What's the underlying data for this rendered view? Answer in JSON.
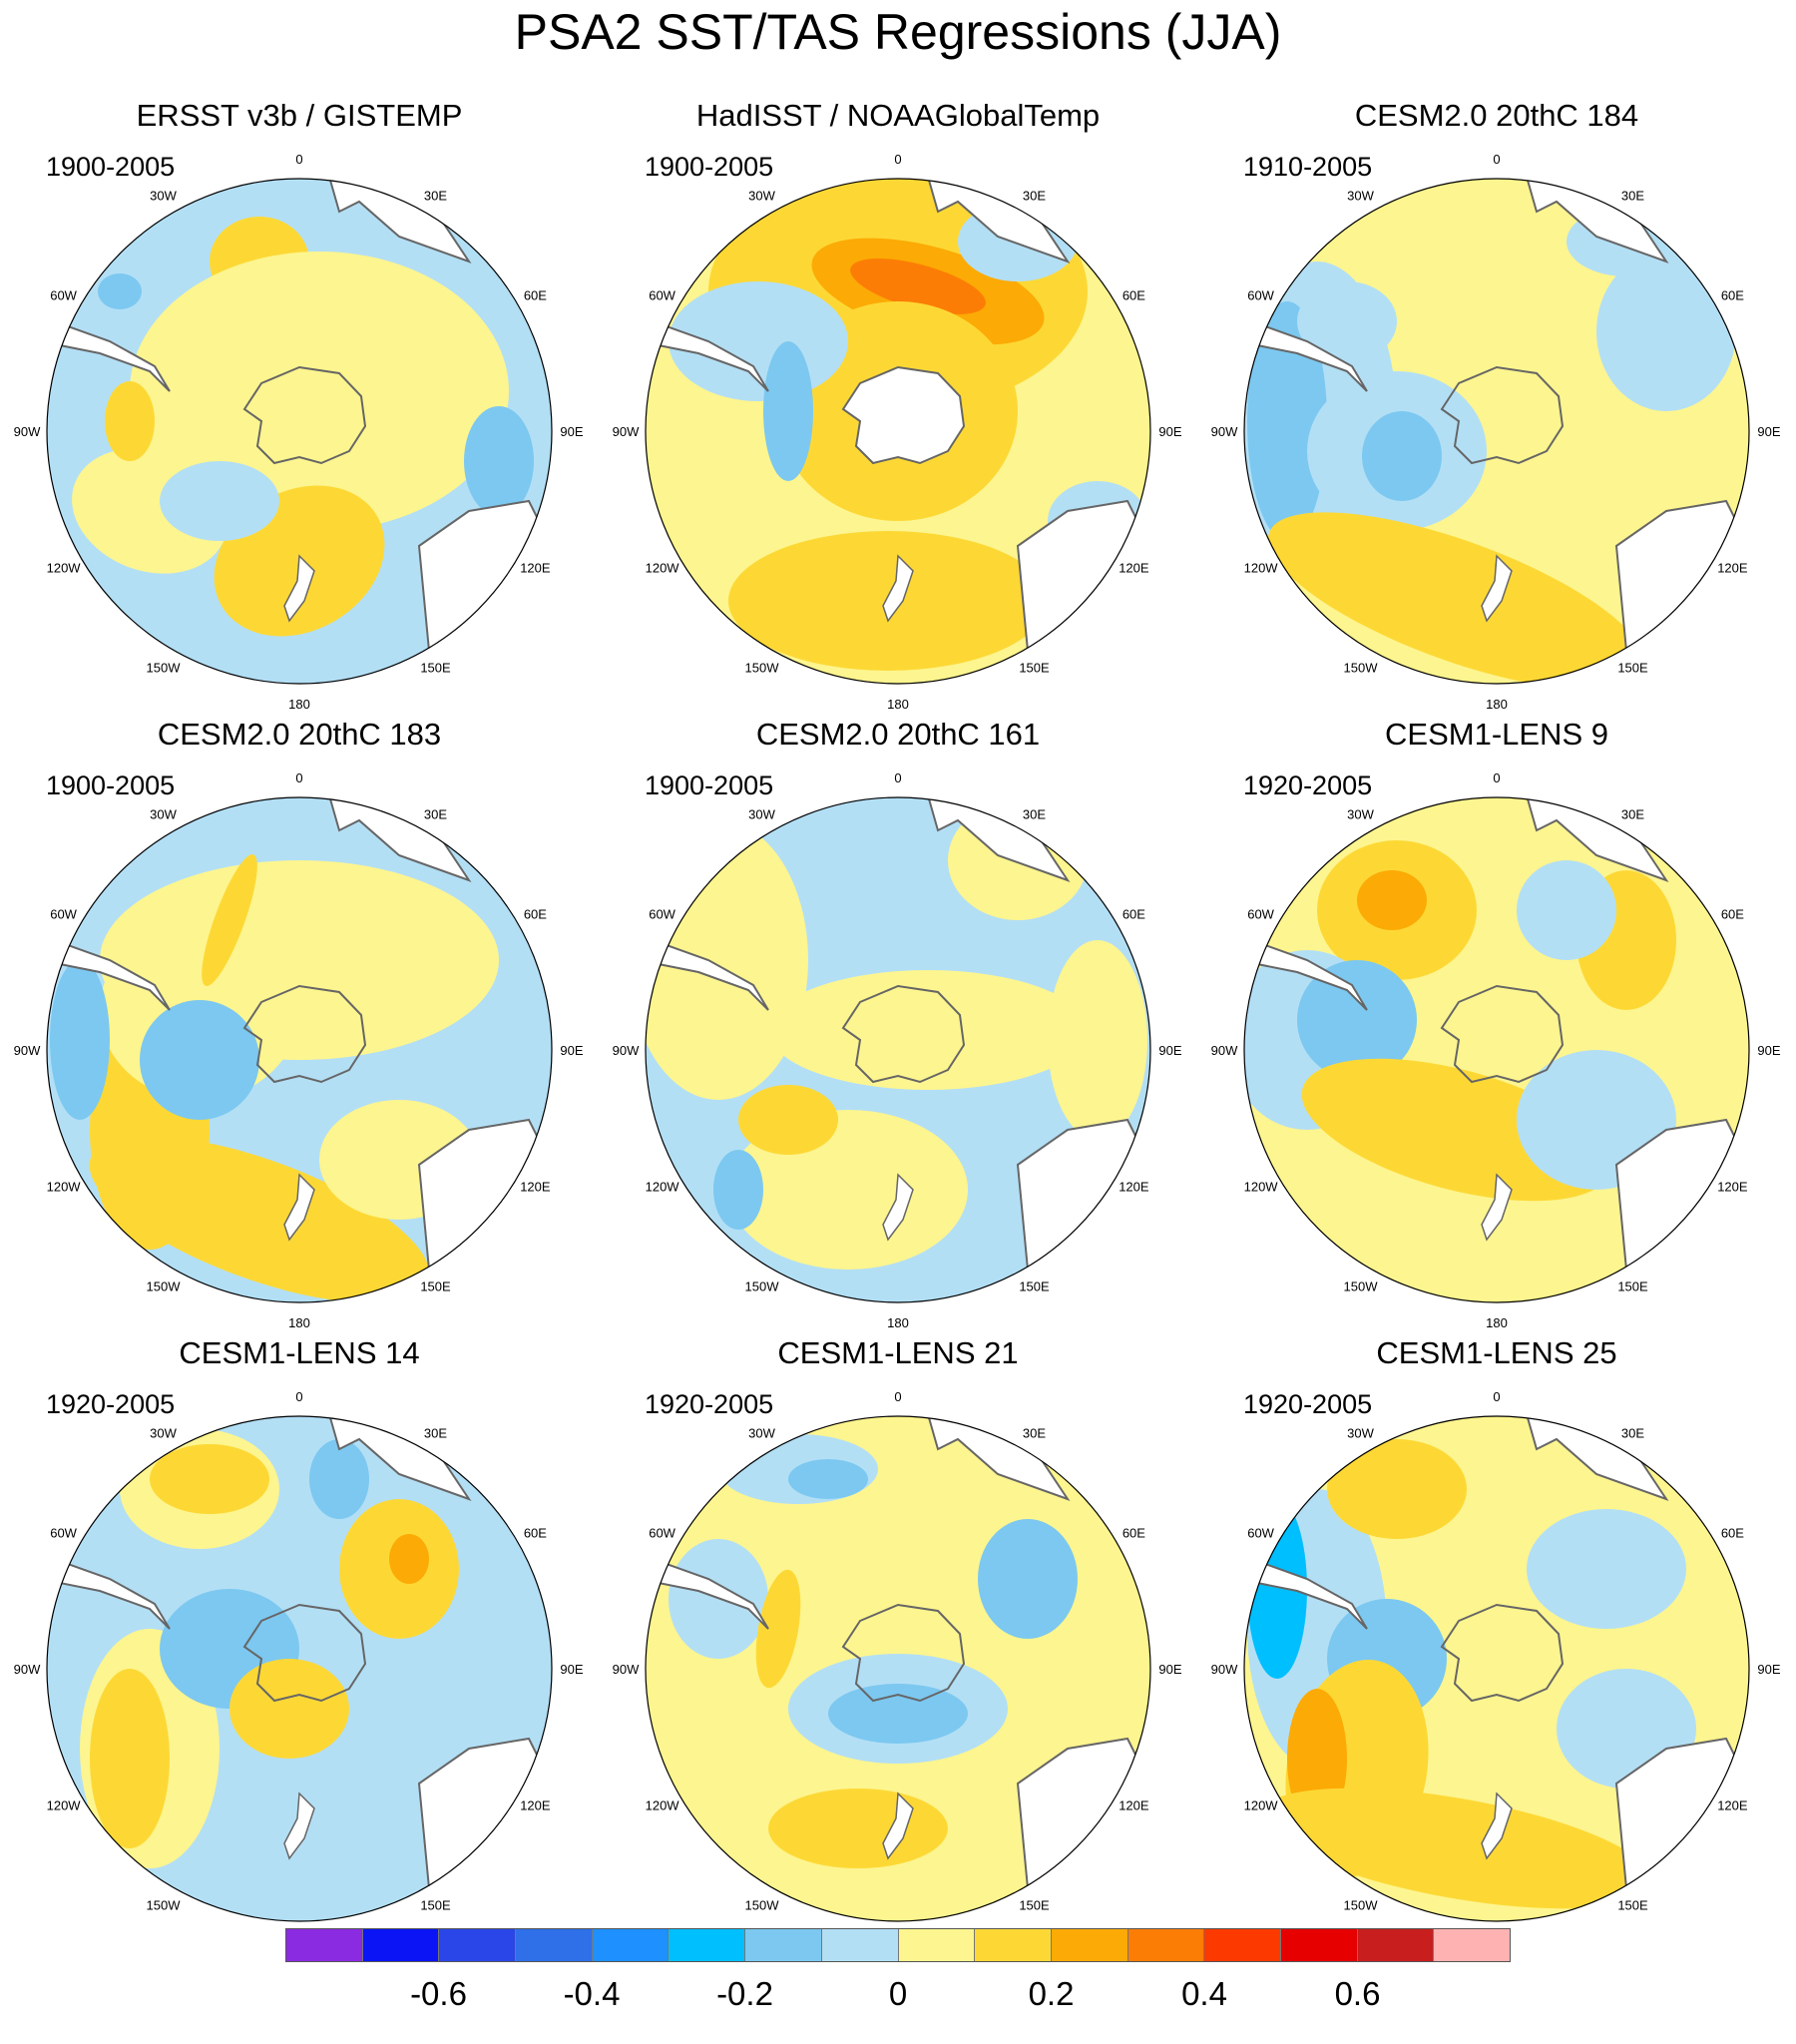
{
  "title": "PSA2 SST/TAS Regressions (JJA)",
  "longitude_labels": [
    "0",
    "30E",
    "60E",
    "90E",
    "120E",
    "150E",
    "180",
    "150W",
    "120W",
    "90W",
    "60W",
    "30W"
  ],
  "panels": [
    {
      "title": "ERSST v3b / GISTEMP",
      "period": "1900-2005",
      "style": "obs1"
    },
    {
      "title": "HadISST / NOAAGlobalTemp",
      "period": "1900-2005",
      "style": "obs2"
    },
    {
      "title": "CESM2.0 20thC 184",
      "period": "1910-2005",
      "style": "m1"
    },
    {
      "title": "CESM2.0 20thC 183",
      "period": "1900-2005",
      "style": "m2"
    },
    {
      "title": "CESM2.0 20thC 161",
      "period": "1900-2005",
      "style": "m3"
    },
    {
      "title": "CESM1-LENS 9",
      "period": "1920-2005",
      "style": "m4"
    },
    {
      "title": "CESM1-LENS 14",
      "period": "1920-2005",
      "style": "m5"
    },
    {
      "title": "CESM1-LENS 21",
      "period": "1920-2005",
      "style": "m6"
    },
    {
      "title": "CESM1-LENS 25",
      "period": "1920-2005",
      "style": "m7"
    }
  ],
  "colorbar": {
    "colors": [
      "#8a2be2",
      "#0a14f5",
      "#2a46e8",
      "#2f6fe8",
      "#1e90ff",
      "#00bfff",
      "#7cc8f0",
      "#b3dff5",
      "#fdf58f",
      "#fdd835",
      "#fcaa05",
      "#fc7d05",
      "#fc3a00",
      "#e60000",
      "#c81e1e",
      "#ffb2b2"
    ],
    "tick_labels": [
      "-0.6",
      "-0.4",
      "-0.2",
      "0",
      "0.2",
      "0.4",
      "0.6"
    ],
    "tick_boundary_index": [
      2,
      4,
      6,
      8,
      10,
      12,
      14
    ]
  },
  "colors": {
    "land": "#ffffff",
    "coast": "#666666",
    "neg_light": "#b3dff5",
    "neg_mid": "#7cc8f0",
    "neg_strong": "#00bfff",
    "pos_light": "#fdf58f",
    "pos_mid": "#fdd835",
    "pos_strong": "#fcaa05",
    "pos_vstrong": "#fc7d05"
  }
}
